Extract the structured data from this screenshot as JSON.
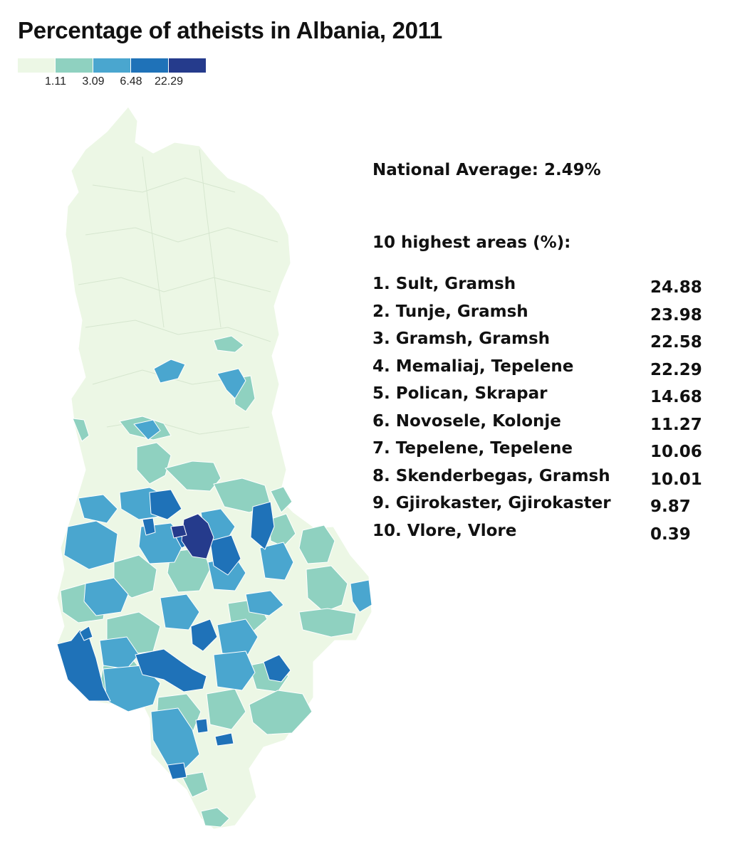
{
  "title": "Percentage of atheists in Albania, 2011",
  "legend": {
    "colors": [
      "#ecf7e5",
      "#8fd1c0",
      "#4aa6cf",
      "#1f72b8",
      "#253b8c"
    ],
    "ticks": [
      "1.11",
      "3.09",
      "6.48",
      "22.29"
    ]
  },
  "national_average": "National Average: 2.49%",
  "list_heading": "10 highest areas (%):",
  "rankings": [
    {
      "name": "1. Sult, Gramsh",
      "value": "24.88"
    },
    {
      "name": "2. Tunje, Gramsh",
      "value": "23.98"
    },
    {
      "name": "3. Gramsh, Gramsh",
      "value": "22.58"
    },
    {
      "name": "4. Memaliaj, Tepelene",
      "value": "22.29"
    },
    {
      "name": "5. Polican, Skrapar",
      "value": "14.68"
    },
    {
      "name": "6. Novosele, Kolonje",
      "value": "11.27"
    },
    {
      "name": "7. Tepelene, Tepelene",
      "value": "10.06"
    },
    {
      "name": "8. Skenderbegas, Gramsh",
      "value": "10.01"
    },
    {
      "name": "9. Gjirokaster, Gjirokaster",
      "value": "9.87"
    },
    {
      "name": "10. Vlore, Vlore",
      "value": "0.39"
    }
  ]
}
